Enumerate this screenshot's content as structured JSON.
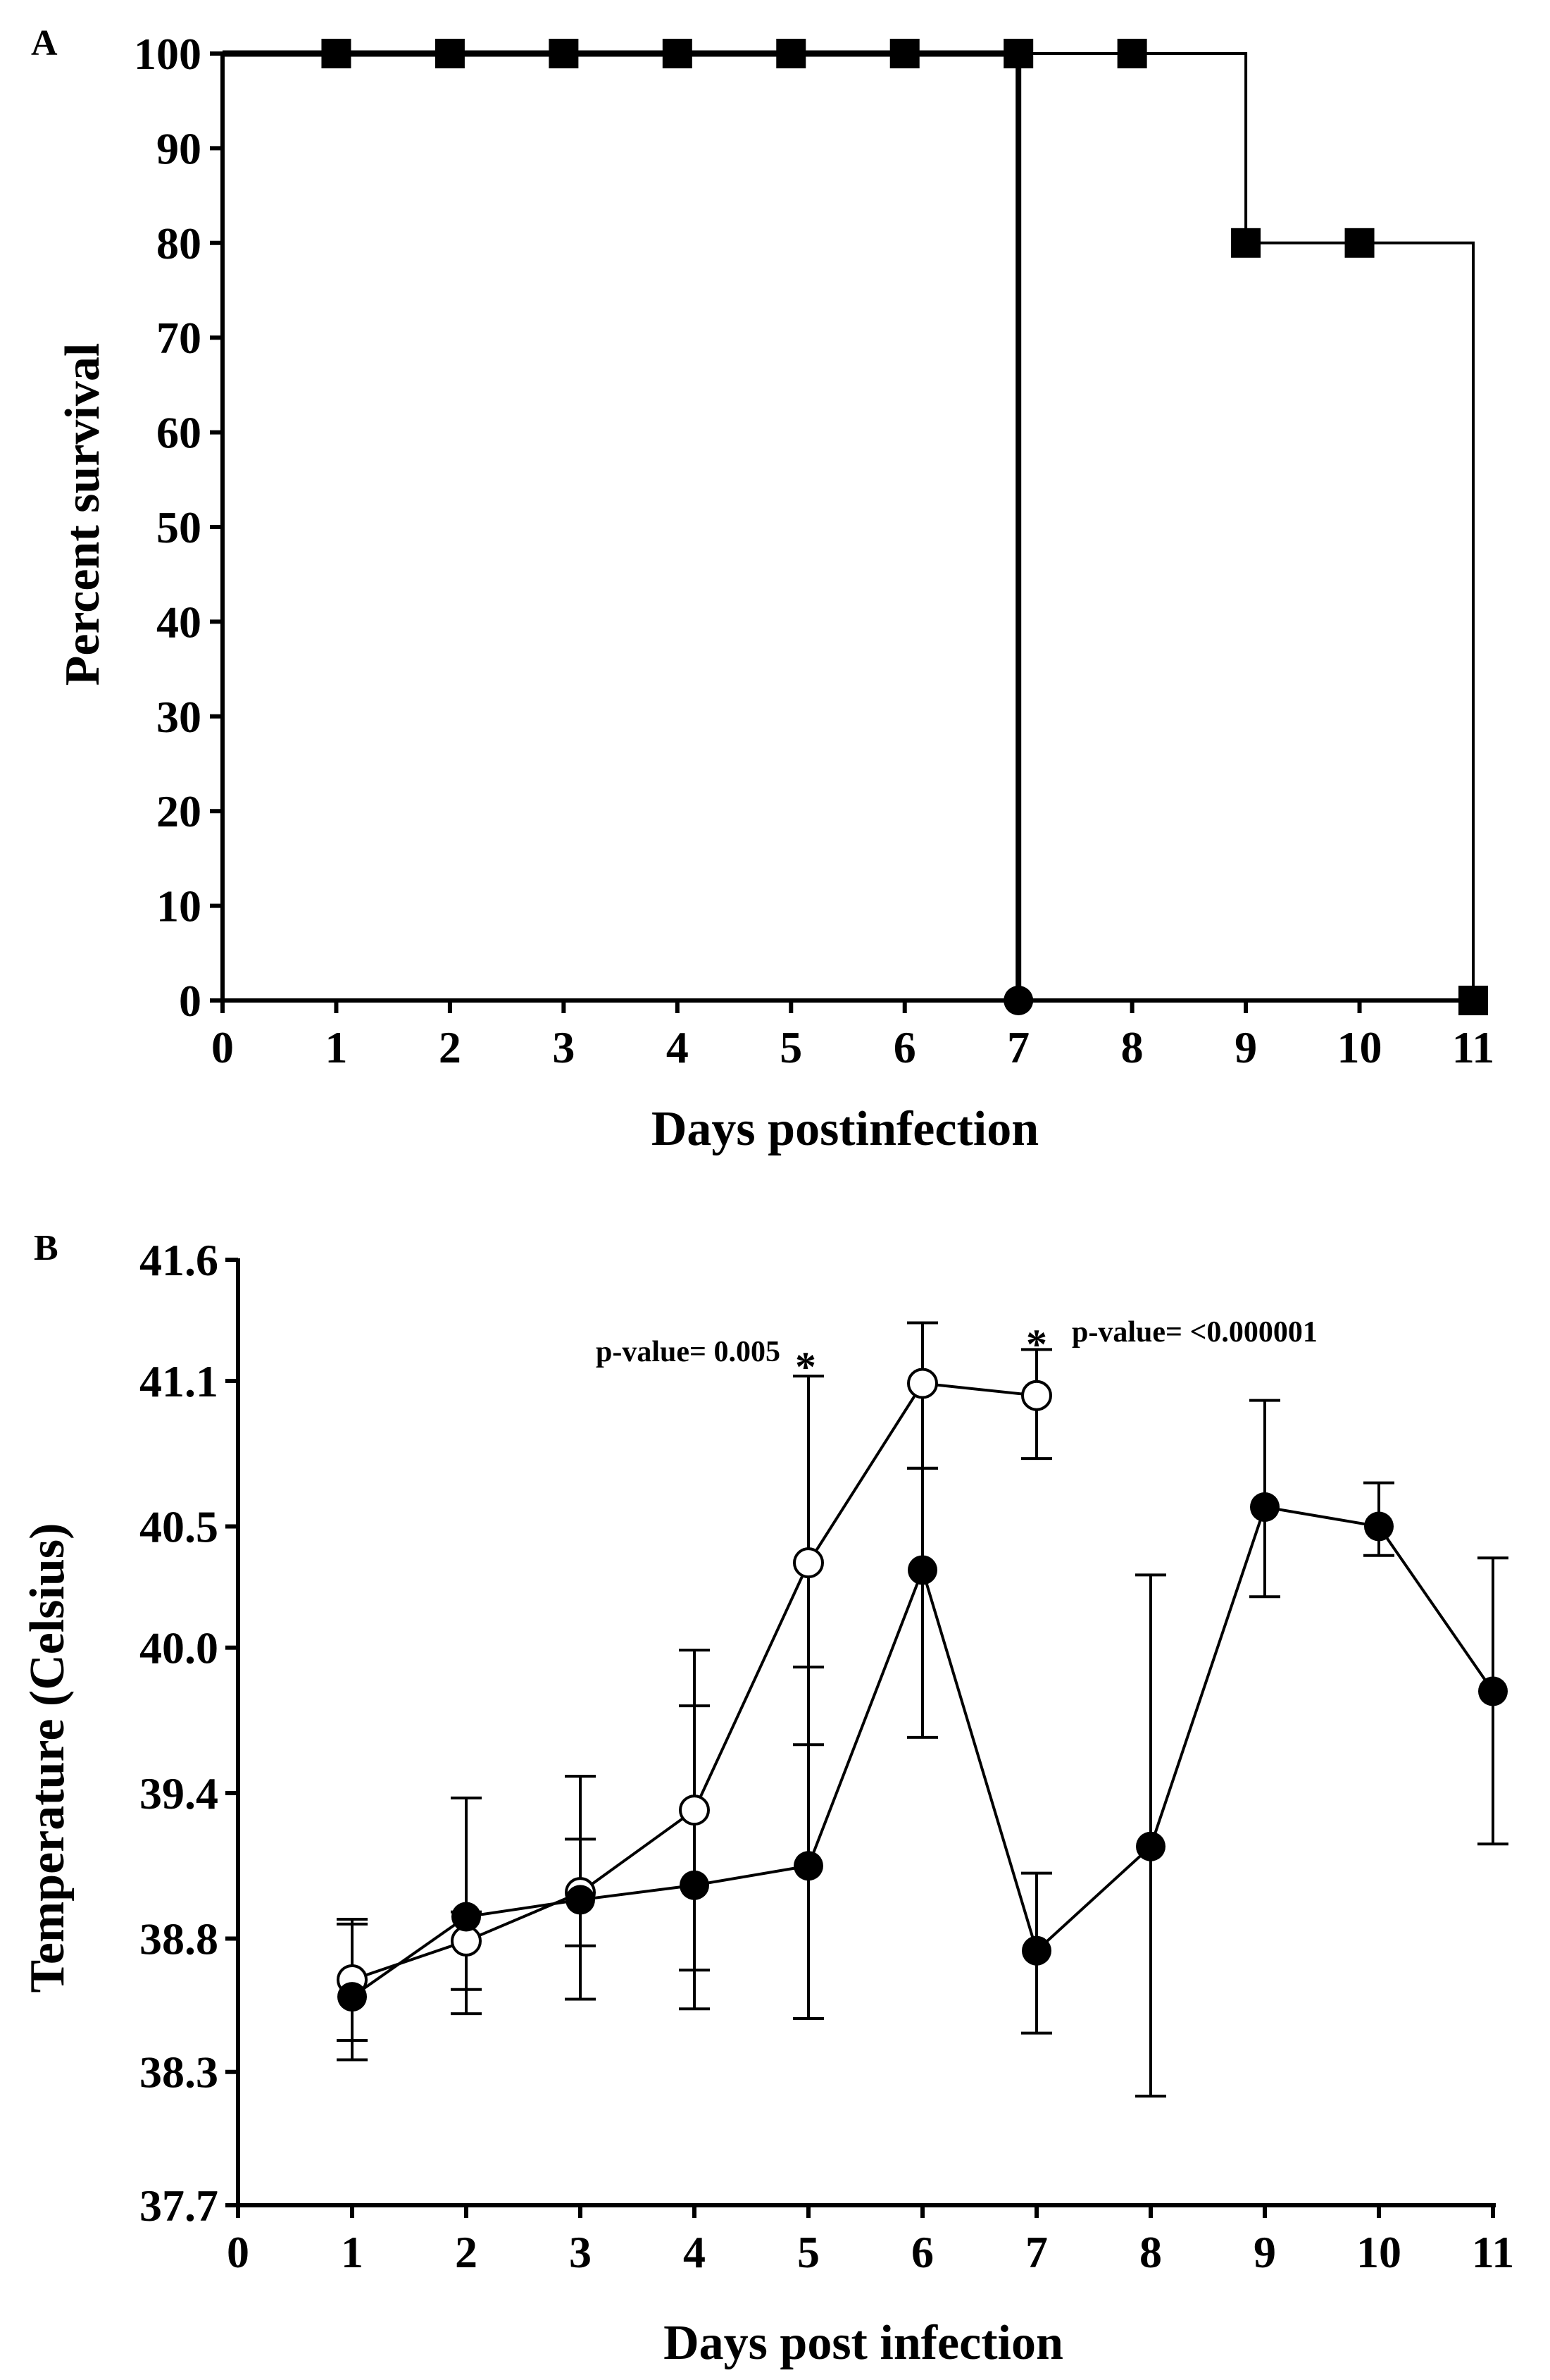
{
  "chart_data": [
    {
      "panel": "A",
      "type": "line",
      "subtype": "step-survival",
      "xlabel": "Days postinfection",
      "ylabel": "Percent survival",
      "xlim": [
        0,
        11
      ],
      "ylim": [
        0,
        100
      ],
      "xticks": [
        "0",
        "1",
        "2",
        "3",
        "4",
        "5",
        "6",
        "7",
        "8",
        "9",
        "10",
        "11"
      ],
      "yticks": [
        "0",
        "10",
        "20",
        "30",
        "40",
        "50",
        "60",
        "70",
        "80",
        "90",
        "100"
      ],
      "series": [
        {
          "name": "circle-group",
          "marker": "filled-circle",
          "steps": [
            [
              0,
              100
            ],
            [
              7,
              100
            ],
            [
              7,
              0
            ]
          ],
          "markers": [
            [
              7,
              0
            ]
          ]
        },
        {
          "name": "square-group",
          "marker": "filled-square",
          "steps": [
            [
              0,
              100
            ],
            [
              9,
              100
            ],
            [
              9,
              80
            ],
            [
              11,
              80
            ],
            [
              11,
              0
            ]
          ],
          "markers": [
            [
              1,
              100
            ],
            [
              2,
              100
            ],
            [
              3,
              100
            ],
            [
              4,
              100
            ],
            [
              5,
              100
            ],
            [
              6,
              100
            ],
            [
              7,
              100
            ],
            [
              8,
              100
            ],
            [
              9,
              80
            ],
            [
              10,
              80
            ],
            [
              11,
              0
            ]
          ]
        }
      ]
    },
    {
      "panel": "B",
      "type": "line",
      "subtype": "errorbar",
      "xlabel": "Days post infection",
      "ylabel": "Temperature (Celsius)",
      "xlim": [
        0,
        11
      ],
      "ylim": [
        37.7,
        41.6
      ],
      "xticks": [
        "0",
        "1",
        "2",
        "3",
        "4",
        "5",
        "6",
        "7",
        "8",
        "9",
        "10",
        "11"
      ],
      "yticks": [
        {
          "label": "37.7",
          "value": 37.7
        },
        {
          "label": "38.3",
          "value": 38.25
        },
        {
          "label": "38.8",
          "value": 38.8
        },
        {
          "label": "39.4",
          "value": 39.4
        },
        {
          "label": "40.0",
          "value": 40.0
        },
        {
          "label": "40.5",
          "value": 40.5
        },
        {
          "label": "41.1",
          "value": 41.1
        },
        {
          "label": "41.6",
          "value": 41.6
        }
      ],
      "series": [
        {
          "name": "open-circle-group",
          "marker": "open-circle",
          "points": [
            {
              "x": 1,
              "y": 38.63,
              "err_low": 38.38,
              "err_high": 38.88
            },
            {
              "x": 2,
              "y": 38.79,
              "err_low": 38.59,
              "err_high": 39.38
            },
            {
              "x": 3,
              "y": 38.99,
              "err_low": 38.77,
              "err_high": 39.21
            },
            {
              "x": 4,
              "y": 39.33,
              "err_low": 38.67,
              "err_high": 39.99
            },
            {
              "x": 5,
              "y": 40.35,
              "err_low": 39.6,
              "err_high": 41.12
            },
            {
              "x": 6,
              "y": 41.09,
              "err_low": 40.74,
              "err_high": 41.34
            },
            {
              "x": 7,
              "y": 41.04,
              "err_low": 40.78,
              "err_high": 41.23
            }
          ]
        },
        {
          "name": "filled-circle-group",
          "marker": "filled-circle",
          "points": [
            {
              "x": 1,
              "y": 38.56,
              "err_low": 38.3,
              "err_high": 38.86
            },
            {
              "x": 2,
              "y": 38.89,
              "err_low": 38.49,
              "err_high": 38.91
            },
            {
              "x": 3,
              "y": 38.96,
              "err_low": 38.55,
              "err_high": 39.47
            },
            {
              "x": 4,
              "y": 39.02,
              "err_low": 38.51,
              "err_high": 39.76
            },
            {
              "x": 5,
              "y": 39.1,
              "err_low": 38.47,
              "err_high": 39.92
            },
            {
              "x": 6,
              "y": 40.32,
              "err_low": 39.63,
              "err_high": 40.74
            },
            {
              "x": 7,
              "y": 38.75,
              "err_low": 38.41,
              "err_high": 39.07
            },
            {
              "x": 8,
              "y": 39.18,
              "err_low": 38.15,
              "err_high": 40.3
            },
            {
              "x": 9,
              "y": 40.58,
              "err_low": 40.21,
              "err_high": 41.02
            },
            {
              "x": 10,
              "y": 40.5,
              "err_low": 40.38,
              "err_high": 40.68
            },
            {
              "x": 11,
              "y": 39.82,
              "err_low": 39.19,
              "err_high": 40.37
            }
          ]
        }
      ],
      "annotations": [
        {
          "text": "p-value= 0.005",
          "star": "*",
          "x": 5
        },
        {
          "text": "p-value= <0.000001",
          "star": "*",
          "x": 7
        }
      ]
    }
  ]
}
